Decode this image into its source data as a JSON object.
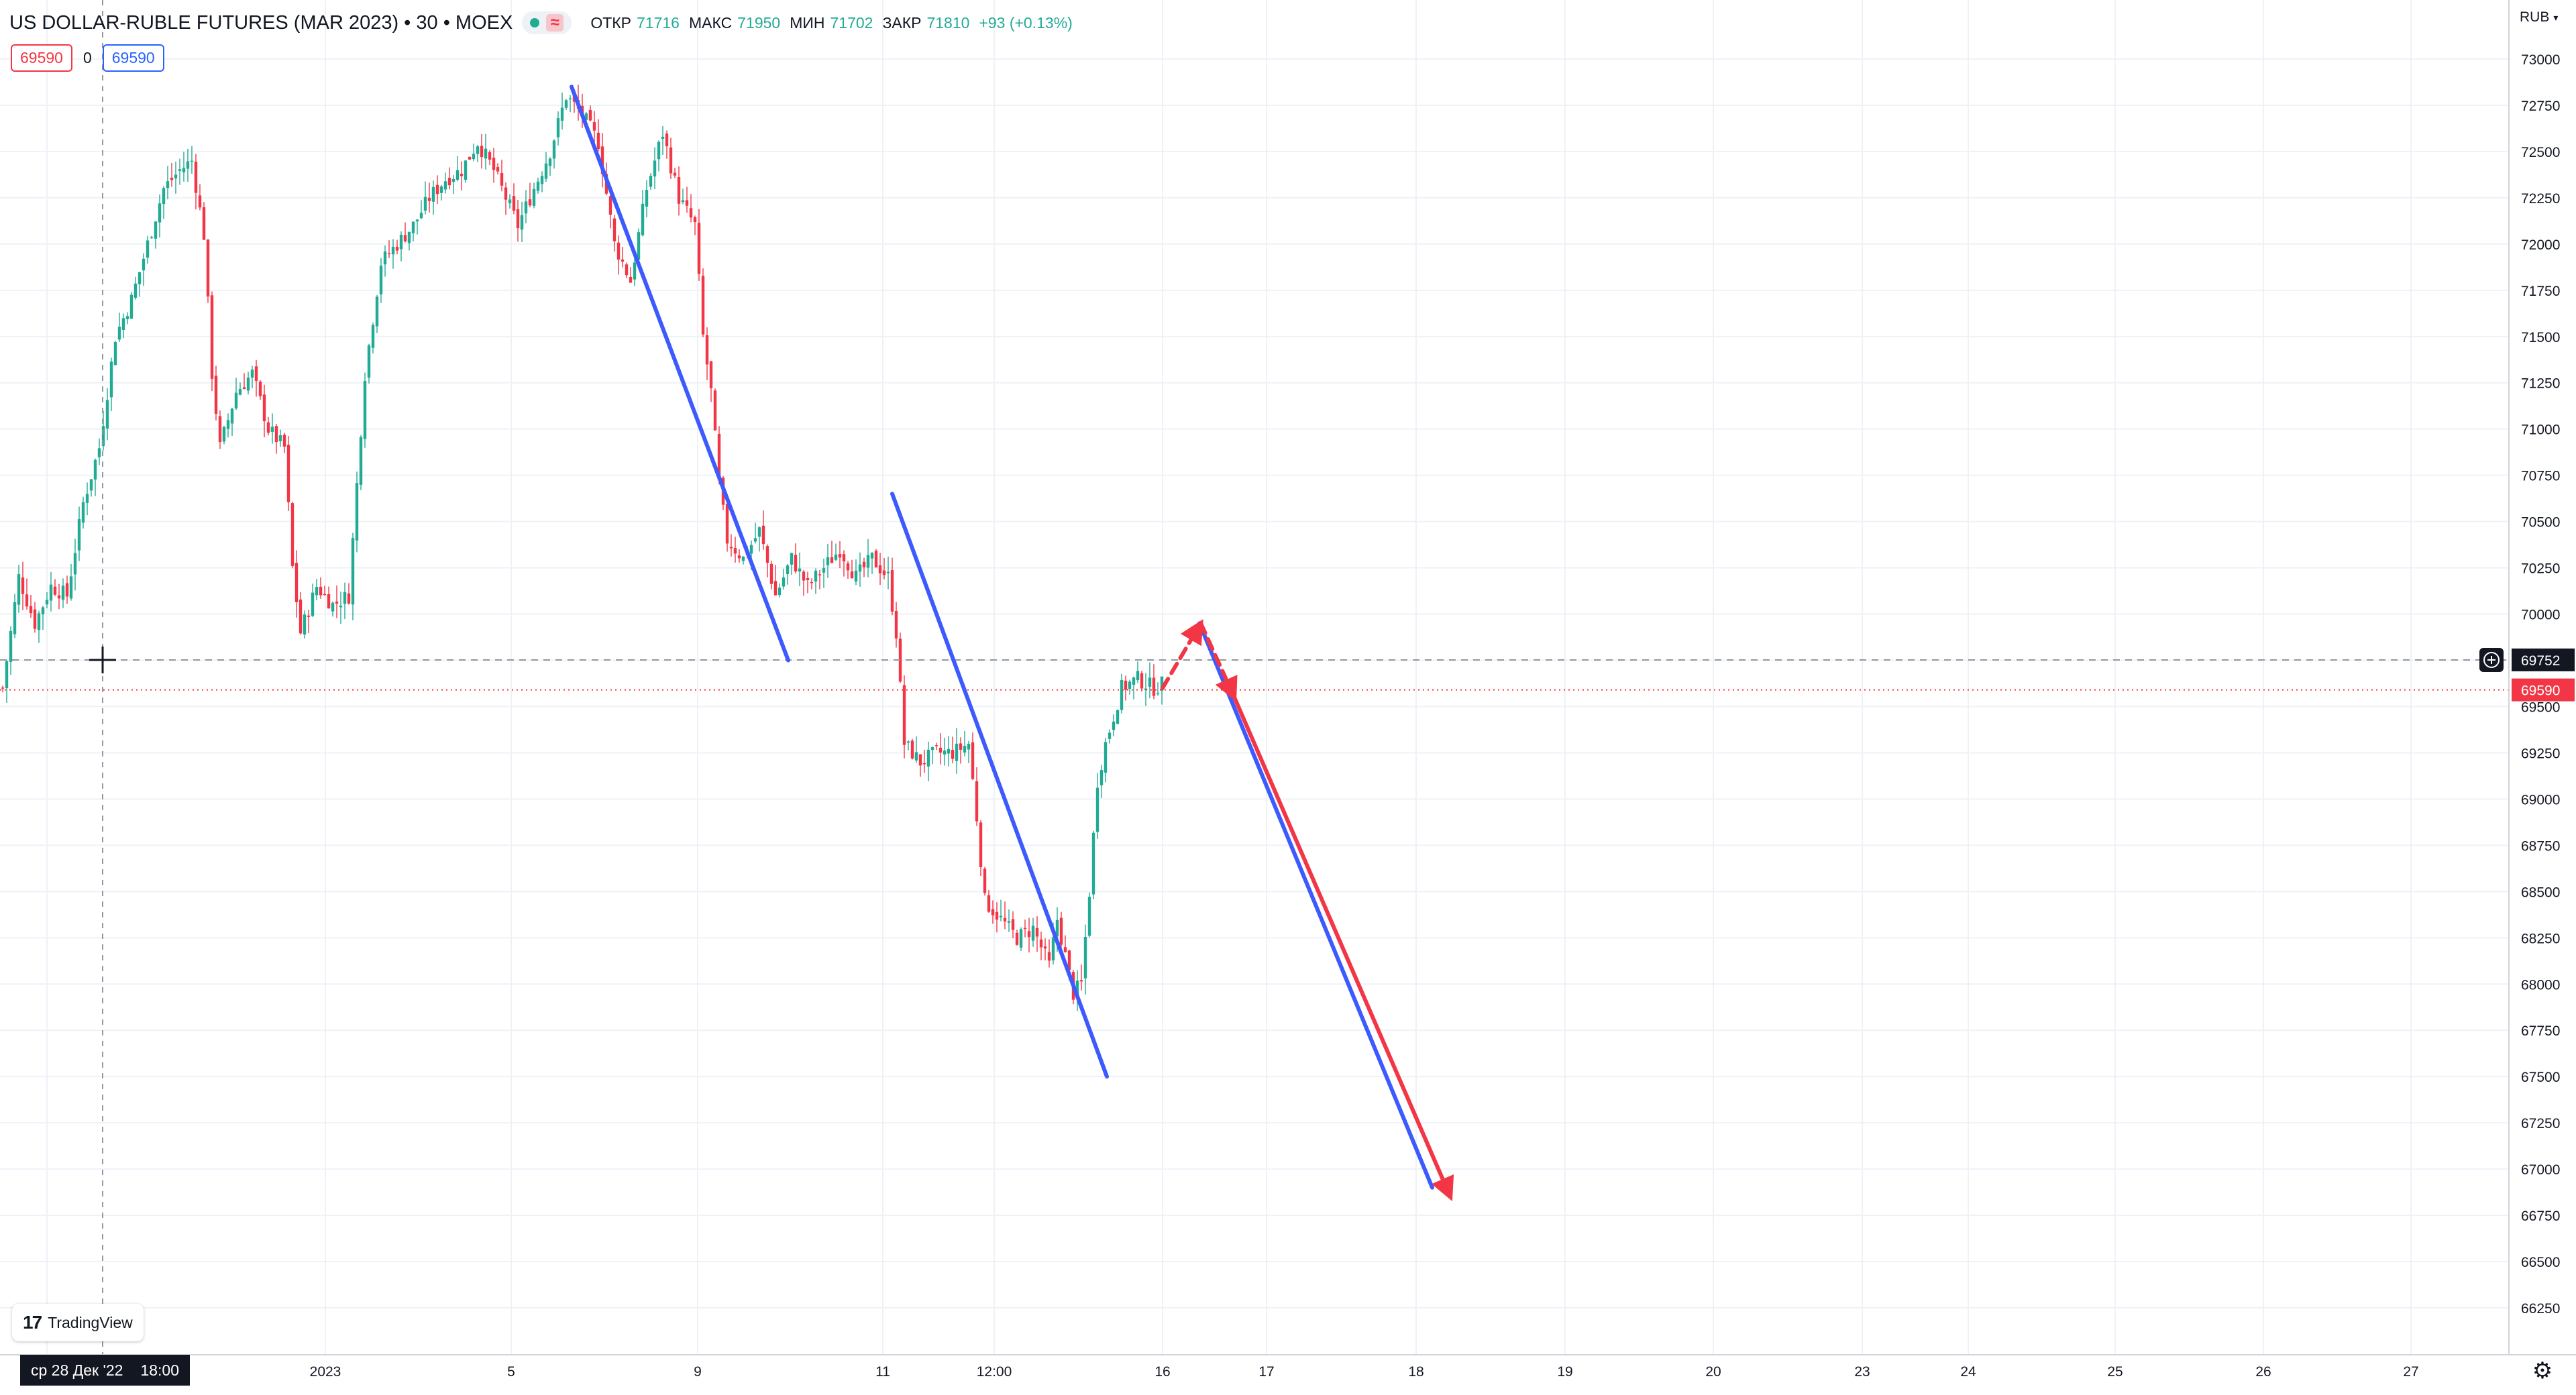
{
  "header": {
    "title": "US DOLLAR-RUBLE FUTURES (MAR 2023) • 30 • MOEX",
    "ohlc": [
      {
        "key": "ОТКР",
        "value": "71716"
      },
      {
        "key": "МАКС",
        "value": "71950"
      },
      {
        "key": "МИН",
        "value": "71702"
      },
      {
        "key": "ЗАКР",
        "value": "71810"
      }
    ],
    "change": "+93 (+0.13%)"
  },
  "position": {
    "sell_price": "69590",
    "quantity": "0",
    "buy_price": "69590"
  },
  "price_axis": {
    "currency": "RUB",
    "ticks": [
      "73000",
      "72750",
      "72500",
      "72250",
      "72000",
      "71750",
      "71500",
      "71250",
      "71000",
      "70750",
      "70500",
      "70250",
      "70000",
      "69750",
      "69500",
      "69250",
      "69000",
      "68750",
      "68500",
      "68250",
      "68000",
      "67750",
      "67500",
      "67250",
      "67000",
      "66750",
      "66500",
      "66250"
    ],
    "crosshair_label": "69752",
    "last_price_label": "69590"
  },
  "time_axis": {
    "labels": [
      "2023",
      "5",
      "9",
      "11",
      "12:00",
      "16",
      "17",
      "18",
      "19",
      "20",
      "23",
      "24",
      "25",
      "26",
      "27"
    ],
    "crosshair_date": "ср 28 Дек '22",
    "crosshair_time": "18:00"
  },
  "logo": {
    "text": "TradingView",
    "mark": "17"
  },
  "colors": {
    "up": "#22ab94",
    "down": "#f23645",
    "blue_line": "#3d5afe",
    "red_arrow": "#f23645",
    "grid": "#eef2f7"
  },
  "chart_data": {
    "type": "candlestick",
    "symbol": "US DOLLAR-RUBLE FUTURES (MAR 2023)",
    "interval": "30",
    "exchange": "MOEX",
    "ylim": [
      66100,
      73200
    ],
    "close_path": [
      [
        0,
        69600
      ],
      [
        4,
        70200
      ],
      [
        8,
        69950
      ],
      [
        12,
        70150
      ],
      [
        16,
        70100
      ],
      [
        20,
        70600
      ],
      [
        24,
        70900
      ],
      [
        28,
        71500
      ],
      [
        32,
        71700
      ],
      [
        36,
        72000
      ],
      [
        40,
        72300
      ],
      [
        44,
        72400
      ],
      [
        47,
        72450
      ],
      [
        50,
        72050
      ],
      [
        52,
        71300
      ],
      [
        54,
        70900
      ],
      [
        58,
        71200
      ],
      [
        62,
        71300
      ],
      [
        66,
        71000
      ],
      [
        70,
        70900
      ],
      [
        72,
        70250
      ],
      [
        74,
        69900
      ],
      [
        78,
        70150
      ],
      [
        82,
        70050
      ],
      [
        86,
        70100
      ],
      [
        90,
        71300
      ],
      [
        94,
        71900
      ],
      [
        98,
        72000
      ],
      [
        102,
        72100
      ],
      [
        106,
        72250
      ],
      [
        110,
        72350
      ],
      [
        114,
        72400
      ],
      [
        118,
        72550
      ],
      [
        122,
        72400
      ],
      [
        126,
        72200
      ],
      [
        128,
        72100
      ],
      [
        132,
        72300
      ],
      [
        136,
        72500
      ],
      [
        140,
        72800
      ],
      [
        144,
        72700
      ],
      [
        148,
        72550
      ],
      [
        152,
        72000
      ],
      [
        156,
        71800
      ],
      [
        160,
        72300
      ],
      [
        164,
        72600
      ],
      [
        168,
        72250
      ],
      [
        172,
        72100
      ],
      [
        174,
        71500
      ],
      [
        176,
        71200
      ],
      [
        178,
        70700
      ],
      [
        180,
        70400
      ],
      [
        184,
        70300
      ],
      [
        188,
        70450
      ],
      [
        192,
        70100
      ],
      [
        196,
        70300
      ],
      [
        200,
        70150
      ],
      [
        204,
        70250
      ],
      [
        208,
        70350
      ],
      [
        212,
        70200
      ],
      [
        216,
        70300
      ],
      [
        220,
        70200
      ],
      [
        222,
        69900
      ],
      [
        224,
        69300
      ],
      [
        228,
        69200
      ],
      [
        232,
        69250
      ],
      [
        236,
        69250
      ],
      [
        240,
        69300
      ],
      [
        242,
        68900
      ],
      [
        244,
        68450
      ],
      [
        248,
        68350
      ],
      [
        252,
        68250
      ],
      [
        256,
        68300
      ],
      [
        260,
        68100
      ],
      [
        262,
        68350
      ],
      [
        264,
        68150
      ],
      [
        266,
        67950
      ],
      [
        268,
        68000
      ],
      [
        270,
        68500
      ],
      [
        272,
        69100
      ],
      [
        274,
        69300
      ],
      [
        276,
        69450
      ],
      [
        278,
        69600
      ],
      [
        282,
        69650
      ],
      [
        286,
        69600
      ],
      [
        288,
        69620
      ]
    ],
    "annotations": [
      {
        "type": "trend_line",
        "color": "blue",
        "from": {
          "date": "2023-01-06",
          "price": 72850
        },
        "to": {
          "date": "2023-01-10",
          "price": 69750
        }
      },
      {
        "type": "trend_line",
        "color": "blue",
        "from": {
          "date": "2023-01-11",
          "price": 70650
        },
        "to": {
          "date": "2023-01-13",
          "price": 67500
        }
      },
      {
        "type": "trend_line",
        "color": "blue",
        "from": {
          "date": "2023-01-16",
          "price": 69950
        },
        "to": {
          "date": "2023-01-18",
          "price": 66900
        }
      },
      {
        "type": "arrow_dashed",
        "color": "red",
        "from": {
          "date": "2023-01-16",
          "price": 69600
        },
        "to": {
          "date": "2023-01-16",
          "price": 69950
        }
      },
      {
        "type": "arrow_dashed",
        "color": "red",
        "from": {
          "date": "2023-01-16",
          "price": 69950
        },
        "to": {
          "date": "2023-01-16",
          "price": 69550
        }
      },
      {
        "type": "arrow",
        "color": "red",
        "from": {
          "date": "2023-01-16",
          "price": 69550
        },
        "to": {
          "date": "2023-01-18",
          "price": 66850
        }
      }
    ],
    "horizontal_lines": [
      {
        "price": 69752,
        "style": "dashed",
        "color": "gray"
      },
      {
        "price": 69590,
        "style": "dotted",
        "color": "red"
      }
    ],
    "grid": true
  }
}
